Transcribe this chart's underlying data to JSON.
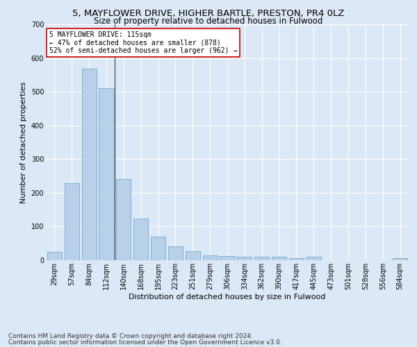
{
  "title1": "5, MAYFLOWER DRIVE, HIGHER BARTLE, PRESTON, PR4 0LZ",
  "title2": "Size of property relative to detached houses in Fulwood",
  "xlabel": "Distribution of detached houses by size in Fulwood",
  "ylabel": "Number of detached properties",
  "footer1": "Contains HM Land Registry data © Crown copyright and database right 2024.",
  "footer2": "Contains public sector information licensed under the Open Government Licence v3.0.",
  "annotation_line1": "5 MAYFLOWER DRIVE: 115sqm",
  "annotation_line2": "← 47% of detached houses are smaller (878)",
  "annotation_line3": "52% of semi-detached houses are larger (962) →",
  "property_sqm": 115,
  "bar_categories": [
    "29sqm",
    "57sqm",
    "84sqm",
    "112sqm",
    "140sqm",
    "168sqm",
    "195sqm",
    "223sqm",
    "251sqm",
    "279sqm",
    "306sqm",
    "334sqm",
    "362sqm",
    "390sqm",
    "417sqm",
    "445sqm",
    "473sqm",
    "501sqm",
    "528sqm",
    "556sqm",
    "584sqm"
  ],
  "bar_values": [
    25,
    228,
    568,
    510,
    240,
    123,
    71,
    41,
    26,
    15,
    13,
    10,
    10,
    10,
    6,
    10,
    0,
    0,
    0,
    0,
    6
  ],
  "bar_color": "#b8d0e8",
  "bar_edge_color": "#6aaad4",
  "vline_color": "#555555",
  "annotation_box_facecolor": "#ffffff",
  "annotation_box_edgecolor": "#cc0000",
  "background_color": "#dce8f5",
  "axes_background": "#dce8f5",
  "ylim": [
    0,
    700
  ],
  "yticks": [
    0,
    100,
    200,
    300,
    400,
    500,
    600,
    700
  ],
  "grid_color": "#ffffff",
  "title1_fontsize": 9.5,
  "title2_fontsize": 8.5,
  "xlabel_fontsize": 8,
  "ylabel_fontsize": 8,
  "tick_fontsize": 7,
  "annotation_fontsize": 7,
  "footer_fontsize": 6.5,
  "vline_x_bar_index": 3,
  "vline_x_offset": 0.5
}
